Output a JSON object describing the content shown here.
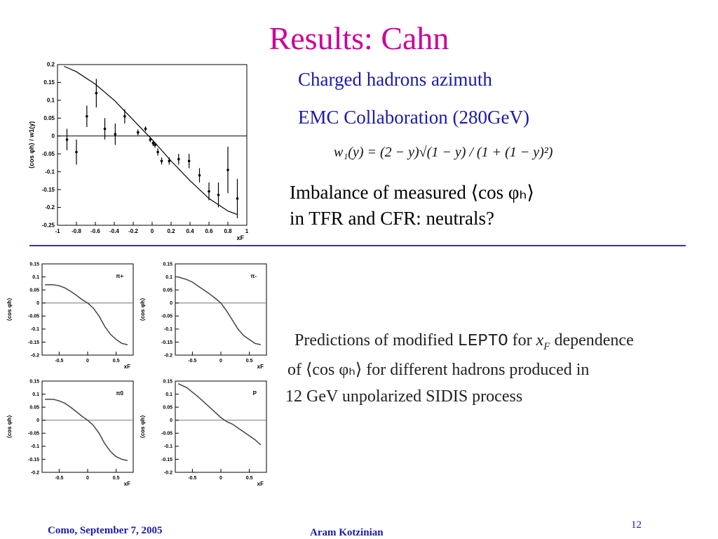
{
  "slide": {
    "title": "Results: Cahn",
    "text_charged": "Charged hadrons azimuth",
    "text_emc": "EMC Collaboration (280GeV)",
    "formula": "w₁(y) = (2 − y)√(1 − y) / (1 + (1 − y)²)",
    "imbalance_line1": "Imbalance of measured ⟨cos φₕ⟩",
    "imbalance_line2": "in TFR and CFR: neutrals?",
    "pred_line1_a": "Predictions of modified ",
    "pred_line1_b": "LEPTO",
    "pred_line1_c": " for ",
    "pred_line1_d": "x",
    "pred_line1_e": "F",
    "pred_line1_f": " dependence",
    "pred_line2": "of ⟨cos φₕ⟩ for different hadrons produced in",
    "pred_line3": "12 GeV unpolarized SIDIS process",
    "footer_left": "Como, September 7,  2005",
    "footer_center": "Aram Kotzinian",
    "page_number": "12"
  },
  "chart_data": [
    {
      "type": "scatter",
      "title": "",
      "xlabel": "xF",
      "ylabel": "⟨cos φh⟩ / w1(y)",
      "xlim": [
        -1,
        1
      ],
      "ylim": [
        -0.25,
        0.2
      ],
      "xticks": [
        "-1",
        "-0.8",
        "-0.6",
        "-0.4",
        "-0.2",
        "0",
        "0.2",
        "0.4",
        "0.6",
        "0.8",
        "1"
      ],
      "yticks": [
        "-0.25",
        "-0.2",
        "-0.15",
        "-0.1",
        "-0.05",
        "0",
        "0.05",
        "0.1",
        "0.15",
        "0.2"
      ],
      "points": [
        {
          "x": -0.9,
          "y": -0.01,
          "err": 0.03
        },
        {
          "x": -0.8,
          "y": -0.045,
          "err": 0.035
        },
        {
          "x": -0.69,
          "y": 0.055,
          "err": 0.03
        },
        {
          "x": -0.59,
          "y": 0.12,
          "err": 0.04
        },
        {
          "x": -0.5,
          "y": 0.02,
          "err": 0.03
        },
        {
          "x": -0.39,
          "y": 0.005,
          "err": 0.03
        },
        {
          "x": -0.29,
          "y": 0.055,
          "err": 0.02
        },
        {
          "x": -0.15,
          "y": 0.01,
          "err": 0.008
        },
        {
          "x": -0.07,
          "y": 0.02,
          "err": 0.007
        },
        {
          "x": -0.02,
          "y": -0.01,
          "err": 0.007
        },
        {
          "x": 0.01,
          "y": -0.02,
          "err": 0.008
        },
        {
          "x": 0.03,
          "y": -0.025,
          "err": 0.008
        },
        {
          "x": 0.06,
          "y": -0.045,
          "err": 0.01
        },
        {
          "x": 0.1,
          "y": -0.07,
          "err": 0.01
        },
        {
          "x": 0.18,
          "y": -0.07,
          "err": 0.01
        },
        {
          "x": 0.28,
          "y": -0.065,
          "err": 0.015
        },
        {
          "x": 0.39,
          "y": -0.07,
          "err": 0.02
        },
        {
          "x": 0.5,
          "y": -0.11,
          "err": 0.02
        },
        {
          "x": 0.6,
          "y": -0.155,
          "err": 0.025
        },
        {
          "x": 0.7,
          "y": -0.165,
          "err": 0.035
        },
        {
          "x": 0.8,
          "y": -0.095,
          "err": 0.065
        },
        {
          "x": 0.9,
          "y": -0.175,
          "err": 0.055
        }
      ],
      "curve": [
        {
          "x": -0.93,
          "y": 0.195
        },
        {
          "x": -0.8,
          "y": 0.18
        },
        {
          "x": -0.6,
          "y": 0.145
        },
        {
          "x": -0.4,
          "y": 0.1
        },
        {
          "x": -0.2,
          "y": 0.045
        },
        {
          "x": 0,
          "y": -0.01
        },
        {
          "x": 0.2,
          "y": -0.07
        },
        {
          "x": 0.4,
          "y": -0.125
        },
        {
          "x": 0.6,
          "y": -0.175
        },
        {
          "x": 0.8,
          "y": -0.21
        },
        {
          "x": 0.9,
          "y": -0.22
        }
      ]
    },
    {
      "type": "line",
      "label": "π+",
      "xlabel": "xF",
      "ylabel": "⟨cos φh⟩",
      "xlim": [
        -0.8,
        0.8
      ],
      "ylim": [
        -0.2,
        0.15
      ],
      "xticks": [
        "-0.5",
        "0",
        "0.5"
      ],
      "yticks": [
        "-0.2",
        "-0.15",
        "-0.1",
        "-0.05",
        "0",
        "0.05",
        "0.1",
        "0.15"
      ],
      "x": [
        -0.75,
        -0.6,
        -0.5,
        -0.4,
        -0.3,
        -0.2,
        -0.1,
        0.0,
        0.1,
        0.2,
        0.3,
        0.4,
        0.5,
        0.6,
        0.7
      ],
      "y": [
        0.07,
        0.07,
        0.066,
        0.058,
        0.045,
        0.03,
        0.013,
        0.0,
        -0.02,
        -0.05,
        -0.09,
        -0.12,
        -0.14,
        -0.155,
        -0.16
      ]
    },
    {
      "type": "line",
      "label": "π-",
      "xlabel": "xF",
      "ylabel": "⟨cos φh⟩",
      "xlim": [
        -0.8,
        0.8
      ],
      "ylim": [
        -0.2,
        0.15
      ],
      "xticks": [
        "-0.5",
        "0",
        "0.5"
      ],
      "yticks": [
        "-0.2",
        "-0.15",
        "-0.1",
        "-0.05",
        "0",
        "0.05",
        "0.1",
        "0.15"
      ],
      "x": [
        -0.75,
        -0.6,
        -0.5,
        -0.4,
        -0.3,
        -0.2,
        -0.1,
        0.0,
        0.1,
        0.2,
        0.3,
        0.4,
        0.5,
        0.6,
        0.7
      ],
      "y": [
        0.1,
        0.09,
        0.08,
        0.065,
        0.05,
        0.035,
        0.018,
        0.0,
        -0.03,
        -0.065,
        -0.1,
        -0.125,
        -0.14,
        -0.155,
        -0.16
      ]
    },
    {
      "type": "line",
      "label": "π0",
      "xlabel": "xF",
      "ylabel": "⟨cos φh⟩",
      "xlim": [
        -0.8,
        0.8
      ],
      "ylim": [
        -0.2,
        0.15
      ],
      "xticks": [
        "-0.5",
        "0",
        "0.5"
      ],
      "yticks": [
        "-0.2",
        "-0.15",
        "-0.1",
        "-0.05",
        "0",
        "0.05",
        "0.1",
        "0.15"
      ],
      "x": [
        -0.75,
        -0.6,
        -0.5,
        -0.4,
        -0.3,
        -0.2,
        -0.1,
        0.0,
        0.1,
        0.2,
        0.3,
        0.4,
        0.5,
        0.6,
        0.7
      ],
      "y": [
        0.08,
        0.08,
        0.074,
        0.065,
        0.05,
        0.033,
        0.015,
        0.0,
        -0.02,
        -0.05,
        -0.09,
        -0.12,
        -0.14,
        -0.15,
        -0.155
      ]
    },
    {
      "type": "line",
      "label": "P",
      "xlabel": "xF",
      "ylabel": "⟨cos φh⟩",
      "xlim": [
        -0.8,
        0.8
      ],
      "ylim": [
        -0.2,
        0.15
      ],
      "xticks": [
        "-0.5",
        "0",
        "0.5"
      ],
      "yticks": [
        "-0.2",
        "-0.15",
        "-0.1",
        "-0.05",
        "0",
        "0.05",
        "0.1",
        "0.15"
      ],
      "x": [
        -0.75,
        -0.6,
        -0.4,
        -0.2,
        0.0,
        0.1,
        0.2,
        0.4,
        0.6,
        0.7
      ],
      "y": [
        0.14,
        0.125,
        0.09,
        0.05,
        0.01,
        -0.005,
        -0.015,
        -0.045,
        -0.075,
        -0.095
      ]
    }
  ]
}
